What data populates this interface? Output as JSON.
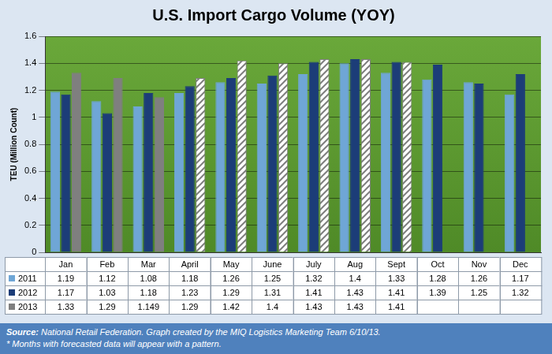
{
  "chart_data": {
    "type": "bar",
    "title": "U.S. Import Cargo Volume (YOY)",
    "y_label": "TEU (Million Count)",
    "categories": [
      "Jan",
      "Feb",
      "Mar",
      "April",
      "May",
      "June",
      "July",
      "Aug",
      "Sept",
      "Oct",
      "Nov",
      "Dec"
    ],
    "series": [
      {
        "name": "2011",
        "color": "#6fa6d6",
        "values": [
          1.19,
          1.12,
          1.08,
          1.18,
          1.26,
          1.25,
          1.32,
          1.4,
          1.33,
          1.28,
          1.26,
          1.17
        ]
      },
      {
        "name": "2012",
        "color": "#1c3d78",
        "values": [
          1.17,
          1.03,
          1.18,
          1.23,
          1.29,
          1.31,
          1.41,
          1.43,
          1.41,
          1.39,
          1.25,
          1.32
        ]
      },
      {
        "name": "2013",
        "color": "#7f7f7f",
        "values": [
          1.33,
          1.29,
          1.149,
          1.29,
          1.42,
          1.4,
          1.43,
          1.43,
          1.41,
          null,
          null,
          null
        ],
        "forecast": [
          false,
          false,
          false,
          true,
          true,
          true,
          true,
          true,
          true,
          false,
          false,
          false
        ]
      }
    ],
    "ylim": [
      0,
      1.6
    ],
    "yticks": [
      0,
      0.2,
      0.4,
      0.6,
      0.8,
      1,
      1.2,
      1.4,
      1.6
    ],
    "grid": true,
    "source": "Source: National Retail Federation. Graph created by the MIQ Logistics Marketing Team 6/10/13.",
    "note": "* Months with forecasted data will appear with a pattern."
  }
}
